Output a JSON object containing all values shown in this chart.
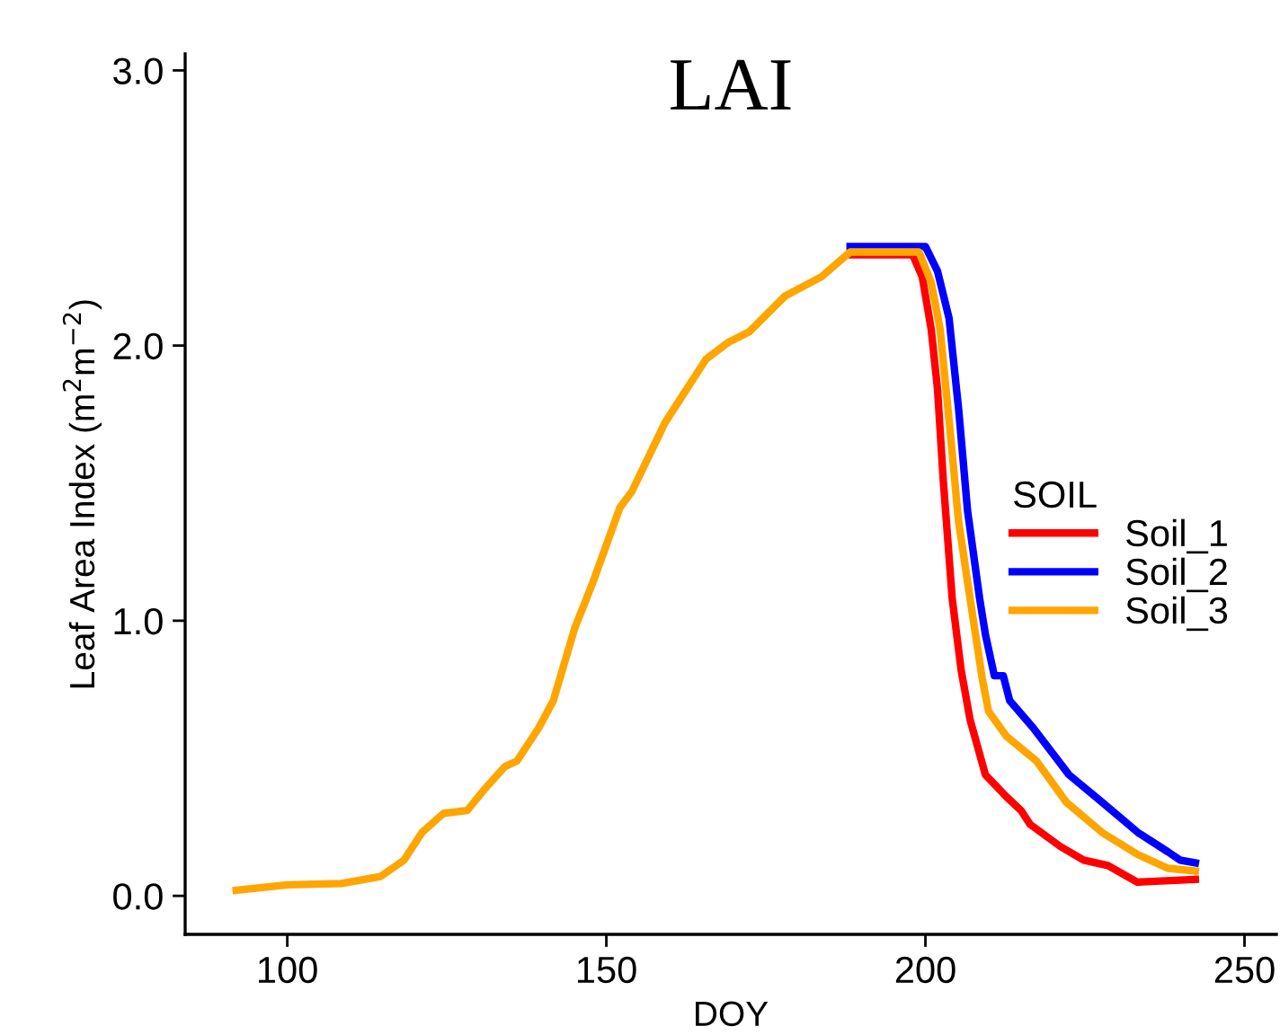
{
  "chart_data": {
    "type": "line",
    "title": "LAI",
    "xlabel": "DOY",
    "ylabel": "Leaf Area Index (m$^{2}$m$^{−2}$)",
    "legend_title": "SOIL",
    "legend": "right",
    "grid": false,
    "xlim": [
      84,
      255
    ],
    "xticks": [
      100,
      150,
      200,
      250
    ],
    "ylim": [
      -0.14,
      3.06
    ],
    "yticks": [
      {
        "value": 0,
        "label": "0.0"
      },
      {
        "value": 1,
        "label": "1.0"
      },
      {
        "value": 2,
        "label": "2.0"
      },
      {
        "value": 3,
        "label": "3.0"
      }
    ],
    "series": [
      {
        "name": "Soil_1",
        "color": "#ff0000",
        "x": [
          188.2,
          198,
          199.5,
          200.9,
          201.9,
          202.8,
          204.2,
          205.6,
          207,
          209.4,
          212.7,
          215,
          216.4,
          221.1,
          224.8,
          228.6,
          233.2,
          242.3
        ],
        "values": [
          2.33,
          2.33,
          2.25,
          2.06,
          1.84,
          1.51,
          1.08,
          0.82,
          0.64,
          0.44,
          0.36,
          0.31,
          0.26,
          0.18,
          0.13,
          0.11,
          0.05,
          0.06
        ]
      },
      {
        "name": "Soil_2",
        "color": "#0000ff",
        "x": [
          188.2,
          200,
          201.9,
          203.7,
          205.2,
          206.6,
          208.5,
          209.4,
          210.8,
          212.2,
          213.2,
          216.9,
          222.5,
          227.7,
          233.3,
          238,
          239.9,
          242.3
        ],
        "values": [
          2.36,
          2.36,
          2.27,
          2.1,
          1.77,
          1.4,
          1.08,
          0.95,
          0.8,
          0.8,
          0.71,
          0.61,
          0.44,
          0.34,
          0.23,
          0.16,
          0.13,
          0.12
        ]
      },
      {
        "name": "Soil_3",
        "color": "#ffa500",
        "x": [
          92,
          100,
          108.5,
          114.6,
          118.3,
          121.1,
          124.5,
          128.2,
          131,
          134.1,
          136,
          139.4,
          141.7,
          145,
          147.9,
          152.1,
          154,
          159.2,
          165.6,
          169,
          172.4,
          178,
          183.7,
          188.2,
          199,
          200.9,
          202.3,
          203.7,
          205.2,
          207,
          208.9,
          209.9,
          212.7,
          217.4,
          222.1,
          227.7,
          233.3,
          238,
          242.3
        ],
        "values": [
          0.02,
          0.04,
          0.045,
          0.07,
          0.13,
          0.23,
          0.3,
          0.31,
          0.39,
          0.47,
          0.49,
          0.61,
          0.71,
          0.97,
          1.14,
          1.41,
          1.47,
          1.72,
          1.95,
          2.01,
          2.05,
          2.18,
          2.25,
          2.34,
          2.34,
          2.23,
          2.06,
          1.73,
          1.36,
          1.08,
          0.79,
          0.67,
          0.58,
          0.49,
          0.34,
          0.23,
          0.15,
          0.1,
          0.09
        ]
      }
    ]
  }
}
